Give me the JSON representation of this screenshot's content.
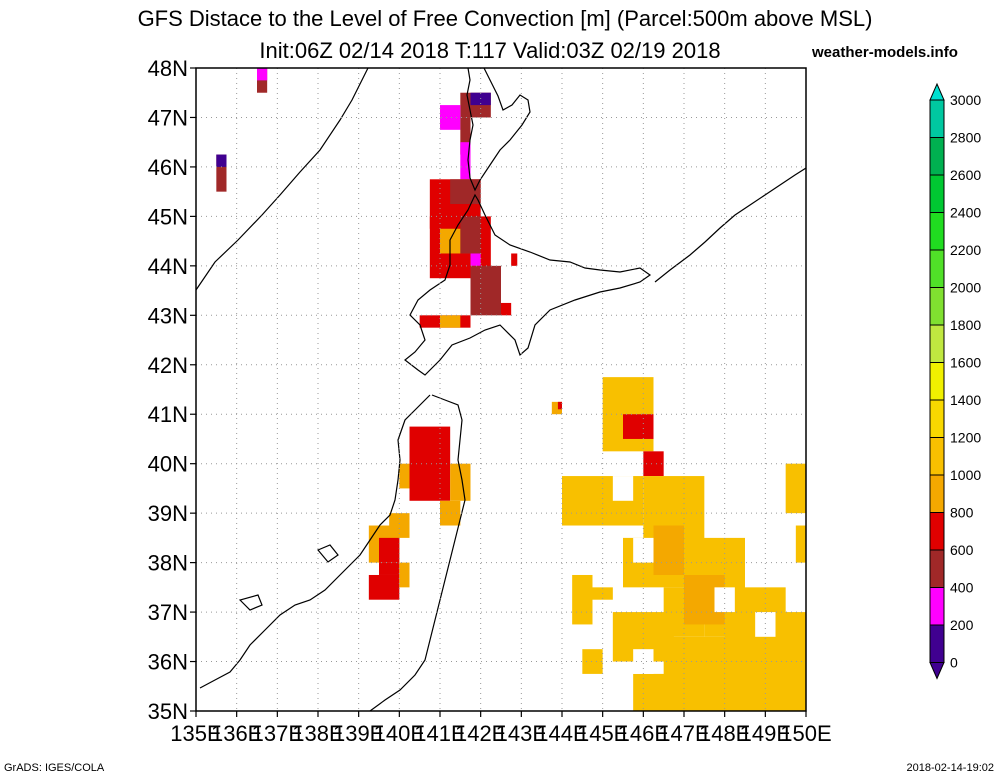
{
  "header": {
    "title_line1": "GFS Distace to the Level of Free Convection [m] (Parcel:500m above MSL)",
    "title_line2": "Init:06Z 02/14 2018 T:117 Valid:03Z 02/19 2018",
    "site": "weather-models.info"
  },
  "footer": {
    "left": "GrADS: IGES/COLA",
    "right": "2018-02-14-19:02"
  },
  "map": {
    "lat_labels": [
      "48N",
      "47N",
      "46N",
      "45N",
      "44N",
      "43N",
      "42N",
      "41N",
      "40N",
      "39N",
      "38N",
      "37N",
      "36N",
      "35N"
    ],
    "lon_labels": [
      "135E",
      "136E",
      "137E",
      "138E",
      "139E",
      "140E",
      "141E",
      "142E",
      "143E",
      "144E",
      "145E",
      "146E",
      "147E",
      "148E",
      "149E",
      "150E"
    ],
    "lat_range": [
      35,
      48
    ],
    "lon_range": [
      135,
      150
    ]
  },
  "colorbar": {
    "labels": [
      "3000",
      "2800",
      "2600",
      "2400",
      "2200",
      "2000",
      "1800",
      "1600",
      "1400",
      "1200",
      "1000",
      "800",
      "600",
      "400",
      "200",
      "0"
    ],
    "colors": [
      "#00e0d0",
      "#00c8a0",
      "#00b050",
      "#00c832",
      "#20dc20",
      "#50e028",
      "#80e030",
      "#c0e840",
      "#f0f000",
      "#f8d800",
      "#f8c000",
      "#f4a800",
      "#e00000",
      "#a02828",
      "#ff00ff",
      "#400090"
    ]
  },
  "cape_field": {
    "categories": [
      "0-200",
      "200-400",
      "400-600",
      "600-800",
      "800-1000"
    ],
    "colors": {
      "dark": "#a02828",
      "red": "#e00000",
      "orange": "#f4a800",
      "yellow": "#f8c000",
      "magenta": "#ff00ff",
      "purple": "#400090"
    }
  }
}
